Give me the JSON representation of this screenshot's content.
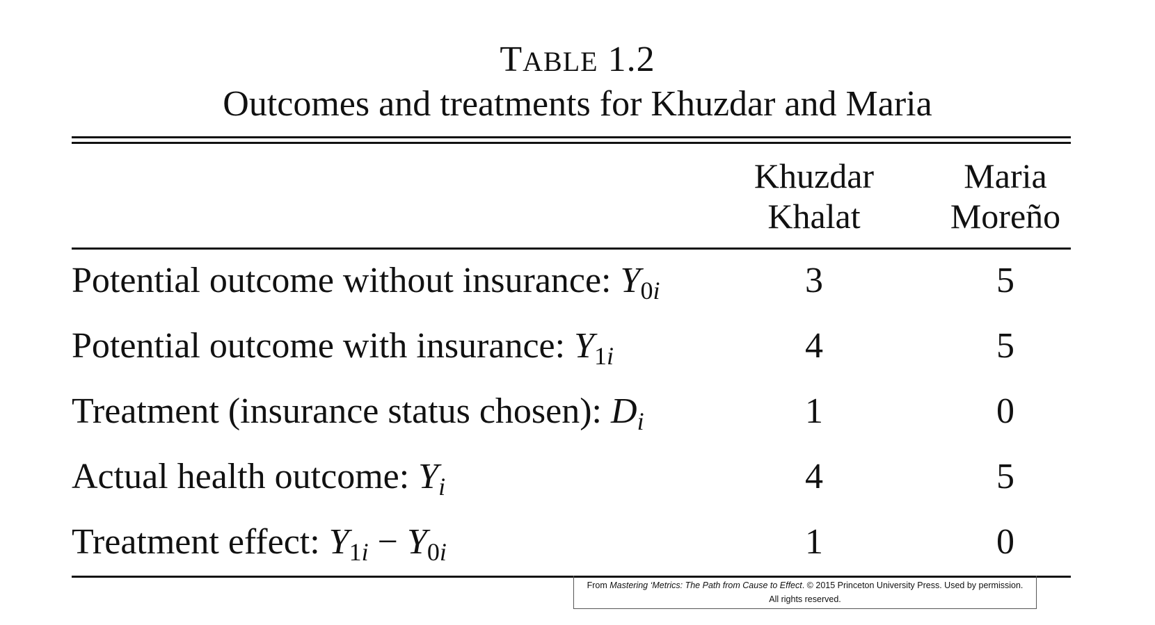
{
  "title": {
    "label_first": "T",
    "label_rest": "able",
    "label_number": " 1.2",
    "caption": "Outcomes and treatments for Khuzdar and Maria"
  },
  "columns": [
    {
      "line1": "Khuzdar",
      "line2": "Khalat"
    },
    {
      "line1": "Maria",
      "line2": "Moreño"
    }
  ],
  "rows": [
    {
      "label": "Potential outcome without insurance: ",
      "symbol": "Y",
      "sub_num": "0",
      "sub_var": "i",
      "values": [
        "3",
        "5"
      ]
    },
    {
      "label": "Potential outcome with insurance: ",
      "symbol": "Y",
      "sub_num": "1",
      "sub_var": "i",
      "values": [
        "4",
        "5"
      ]
    },
    {
      "label": "Treatment (insurance status chosen): ",
      "symbol": "D",
      "sub_var": "i",
      "values": [
        "1",
        "0"
      ]
    },
    {
      "label": "Actual health outcome: ",
      "symbol": "Y",
      "sub_var": "i",
      "values": [
        "4",
        "5"
      ]
    },
    {
      "label": "Treatment effect: ",
      "symbol": "Y",
      "sub_num": "1",
      "sub_var": "i",
      "operator": " − ",
      "symbol2": "Y",
      "sub_num2": "0",
      "sub_var2": "i",
      "values": [
        "1",
        "0"
      ]
    }
  ],
  "credit": {
    "prefix": "From ",
    "book_title": "Mastering ‘Metrics: The Path from Cause to Effect",
    "suffix": ". © 2015 Princeton University Press. Used by permission.",
    "line2": "All rights reserved."
  }
}
